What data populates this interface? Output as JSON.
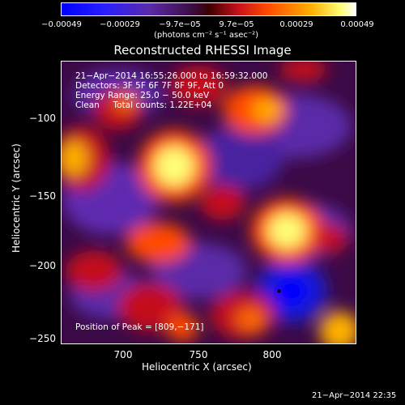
{
  "colorbar": {
    "ticks": [
      "−0.00049",
      "−0.00029",
      "−9.7e−05",
      "9.7e−05",
      "0.00029",
      "0.00049"
    ],
    "units": "(photons cm⁻² s⁻¹ asec⁻²)"
  },
  "title": "Reconstructed RHESSI Image",
  "annotations": {
    "time": "21−Apr−2014 16:55:26.000 to 16:59:32.000",
    "detectors": "Detectors: 3F 5F 6F 7F 8F 9F, Att 0",
    "energy": "Energy Range: 25.0 − 50.0 keV",
    "clean": "Clean     Total counts: 1.22E+04",
    "peak": "Position of Peak = [809,−171]"
  },
  "axes": {
    "xlabel": "Heliocentric X (arcsec)",
    "ylabel": "Heliocentric Y (arcsec)",
    "xticks": [
      "700",
      "750",
      "800"
    ],
    "yticks": [
      "−100",
      "−150",
      "−200",
      "−250"
    ]
  },
  "timestamp": "21−Apr−2014 22:35",
  "colors": {
    "background": "#000000",
    "deep_blue": "#0000ff",
    "purple": "#5a2aa8",
    "dark_red": "#3a0000",
    "red": "#c4111b",
    "orange": "#ff4a00",
    "yellow": "#ffff77"
  }
}
